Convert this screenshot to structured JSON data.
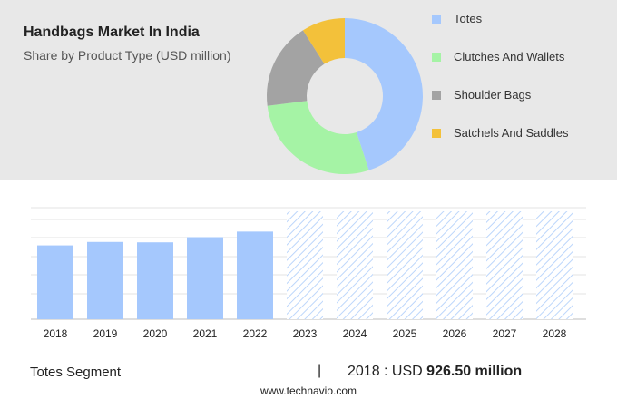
{
  "header": {
    "title": "Handbags Market In India",
    "subtitle": "Share by Product Type (USD million)"
  },
  "colors": {
    "totes": "#a5c8fd",
    "clutches": "#a5f3a5",
    "shoulder": "#a3a3a3",
    "satchels": "#f3c13a",
    "hatch": "#bcd6fb"
  },
  "chart_data": [
    {
      "type": "pie",
      "title": "Share by Product Type (USD million)",
      "donut": true,
      "legend_position": "right",
      "slices": [
        {
          "label": "Totes",
          "value": 45,
          "color": "#a5c8fd"
        },
        {
          "label": "Clutches And Wallets",
          "value": 28,
          "color": "#a5f3a5"
        },
        {
          "label": "Shoulder Bags",
          "value": 18,
          "color": "#a3a3a3"
        },
        {
          "label": "Satchels And Saddles",
          "value": 9,
          "color": "#f3c13a"
        }
      ]
    },
    {
      "type": "bar",
      "series_name": "Totes Segment",
      "categories": [
        "2018",
        "2019",
        "2020",
        "2021",
        "2022",
        "2023",
        "2024",
        "2025",
        "2026",
        "2027",
        "2028"
      ],
      "values": [
        926.5,
        970,
        965,
        1030,
        1100,
        null,
        null,
        null,
        null,
        null,
        null
      ],
      "forecast_from": "2023",
      "ylim": [
        0,
        1400
      ],
      "grid": true
    }
  ],
  "footer": {
    "segment_label": "Totes Segment",
    "separator": "|",
    "year_prefix": "2018 : USD",
    "highlight_value": "926.50 million"
  },
  "source": "www.technavio.com"
}
